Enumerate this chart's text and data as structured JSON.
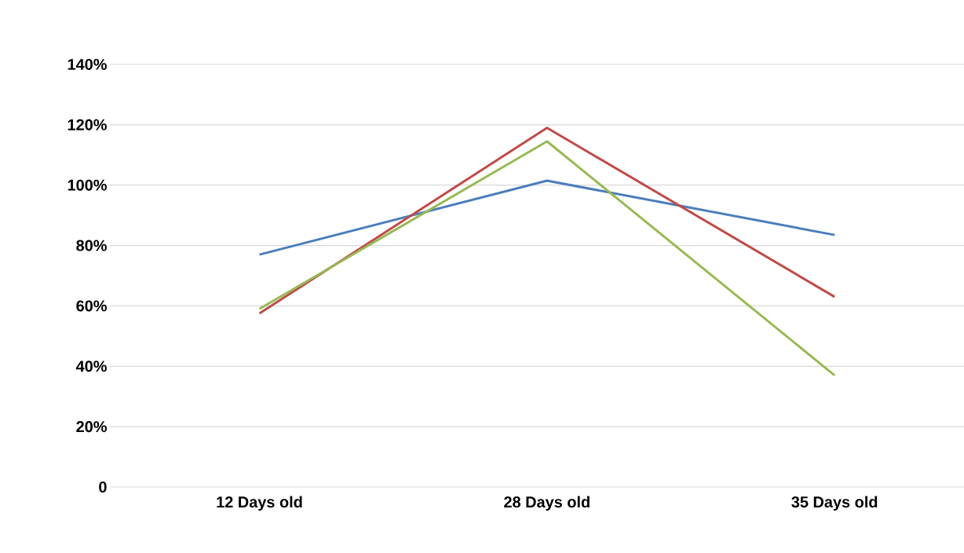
{
  "chart_data": {
    "type": "line",
    "categories": [
      "12 Days old",
      "28 Days old",
      "35 Days old"
    ],
    "series": [
      {
        "color": "#4a7ebb",
        "values": [
          77,
          101.5,
          83.5
        ]
      },
      {
        "color": "#be4b48",
        "values": [
          57.5,
          119,
          63
        ]
      },
      {
        "color": "#98b954",
        "values": [
          59,
          114.5,
          37
        ]
      }
    ],
    "ylim": [
      0,
      140
    ],
    "yticks": [
      0,
      {
        "value": 20,
        "label": "20%"
      },
      {
        "value": 40,
        "label": "40%"
      },
      {
        "value": 60,
        "label": "60%"
      },
      {
        "value": 80,
        "label": "80%"
      },
      {
        "value": 100,
        "label": "100%"
      },
      {
        "value": 120,
        "label": "120%"
      },
      {
        "value": 140,
        "label": "140%"
      }
    ],
    "grid": "y",
    "marker": "none",
    "line_style": "solid"
  }
}
